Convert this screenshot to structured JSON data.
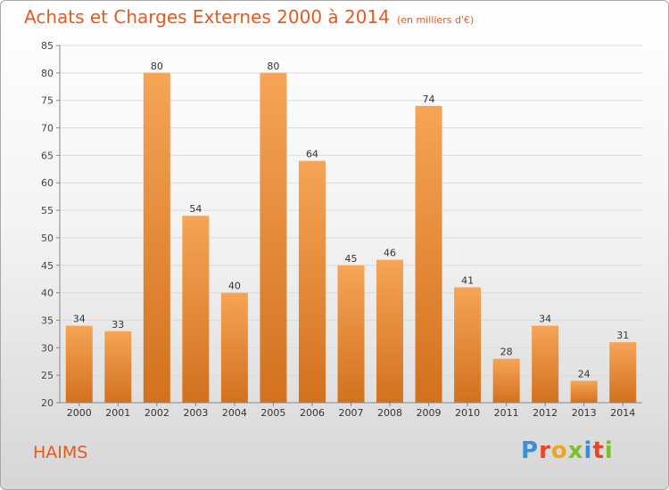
{
  "title": "Achats et Charges Externes 2000 à 2014",
  "unit_note": "(en milliers d'€)",
  "location": "HAIMS",
  "brand": {
    "letters": [
      "P",
      "r",
      "o",
      "x",
      "i",
      "t",
      "i"
    ],
    "colors": [
      "#3a8fd6",
      "#e8452c",
      "#f0a51e",
      "#7bbf2e",
      "#3a8fd6",
      "#e8452c",
      "#7bbf2e"
    ]
  },
  "colors": {
    "bar_top": "#f6a456",
    "bar_bottom": "#d2711f",
    "title": "#e45a1f"
  },
  "chart_data": {
    "type": "bar",
    "categories": [
      "2000",
      "2001",
      "2002",
      "2003",
      "2004",
      "2005",
      "2006",
      "2007",
      "2008",
      "2009",
      "2010",
      "2011",
      "2012",
      "2013",
      "2014"
    ],
    "values": [
      34,
      33,
      80,
      54,
      40,
      80,
      64,
      45,
      46,
      74,
      41,
      28,
      34,
      24,
      31
    ],
    "ylim": [
      20,
      85
    ],
    "yticks": [
      20,
      25,
      30,
      35,
      40,
      45,
      50,
      55,
      60,
      65,
      70,
      75,
      80,
      85
    ],
    "grid": true
  }
}
